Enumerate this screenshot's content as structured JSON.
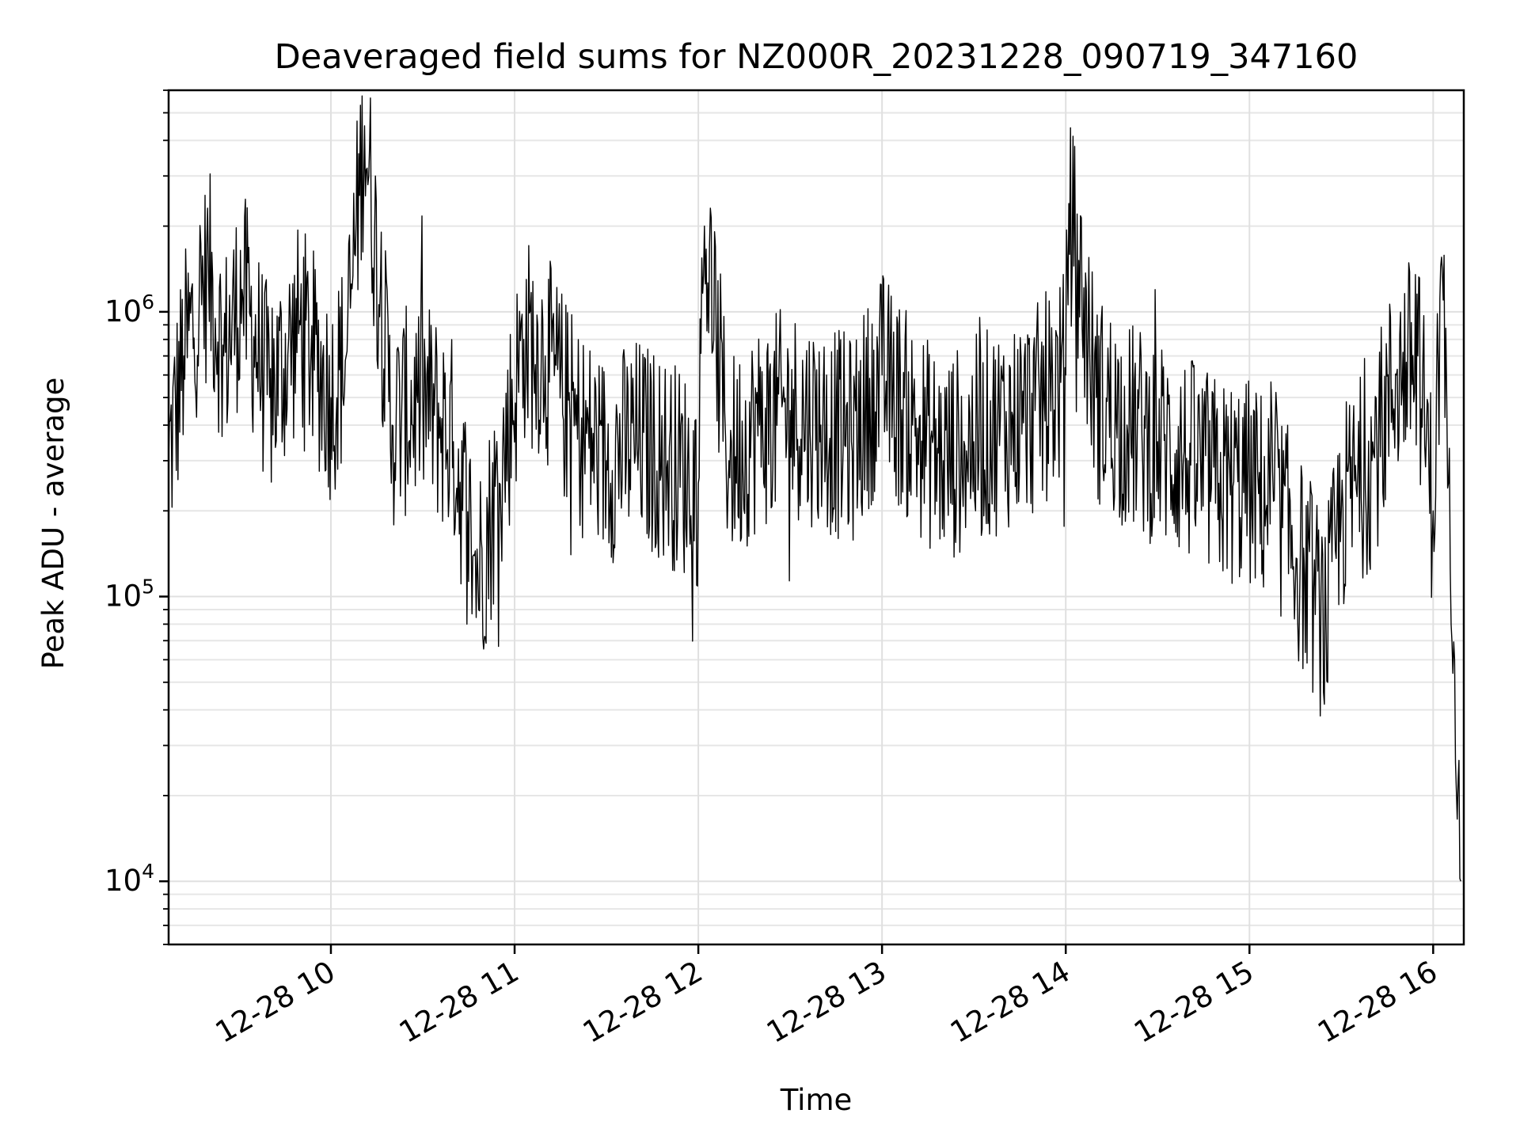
{
  "chart_data": {
    "type": "line",
    "title": "Deaveraged field sums for NZ000R_20231228_090719_347160",
    "xlabel": "Time",
    "ylabel": "Peak ADU - average",
    "y_scale": "log",
    "ylim": [
      6000,
      6000000
    ],
    "xlim": [
      "2023-12-28 09:07",
      "2023-12-28 16:10"
    ],
    "grid": true,
    "line_color": "#000000",
    "x_ticks": [
      {
        "value": "2023-12-28 10:00",
        "label": "12-28 10"
      },
      {
        "value": "2023-12-28 11:00",
        "label": "12-28 11"
      },
      {
        "value": "2023-12-28 12:00",
        "label": "12-28 12"
      },
      {
        "value": "2023-12-28 13:00",
        "label": "12-28 13"
      },
      {
        "value": "2023-12-28 14:00",
        "label": "12-28 14"
      },
      {
        "value": "2023-12-28 15:00",
        "label": "12-28 15"
      },
      {
        "value": "2023-12-28 16:00",
        "label": "12-28 16"
      }
    ],
    "y_ticks": [
      {
        "value": 10000,
        "base": "10",
        "exp": "4"
      },
      {
        "value": 100000,
        "base": "10",
        "exp": "5"
      },
      {
        "value": 1000000,
        "base": "10",
        "exp": "6"
      }
    ],
    "series": [
      {
        "x": [
          "2023-12-28 09:07",
          "2023-12-28 09:12",
          "2023-12-28 09:20",
          "2023-12-28 09:25",
          "2023-12-28 09:31",
          "2023-12-28 09:40",
          "2023-12-28 09:50",
          "2023-12-28 10:00",
          "2023-12-28 10:05",
          "2023-12-28 10:11",
          "2023-12-28 10:20",
          "2023-12-28 10:30",
          "2023-12-28 10:40",
          "2023-12-28 10:48",
          "2023-12-28 10:55",
          "2023-12-28 11:03",
          "2023-12-28 11:10",
          "2023-12-28 11:20",
          "2023-12-28 11:30",
          "2023-12-28 11:40",
          "2023-12-28 11:50",
          "2023-12-28 12:00",
          "2023-12-28 12:02",
          "2023-12-28 12:10",
          "2023-12-28 12:20",
          "2023-12-28 12:30",
          "2023-12-28 12:40",
          "2023-12-28 12:50",
          "2023-12-28 13:00",
          "2023-12-28 13:10",
          "2023-12-28 13:20",
          "2023-12-28 13:30",
          "2023-12-28 13:40",
          "2023-12-28 13:50",
          "2023-12-28 14:00",
          "2023-12-28 14:01",
          "2023-12-28 14:10",
          "2023-12-28 14:20",
          "2023-12-28 14:30",
          "2023-12-28 14:40",
          "2023-12-28 14:50",
          "2023-12-28 15:00",
          "2023-12-28 15:10",
          "2023-12-28 15:18",
          "2023-12-28 15:25",
          "2023-12-28 15:30",
          "2023-12-28 15:40",
          "2023-12-28 15:48",
          "2023-12-28 15:55",
          "2023-12-28 16:00",
          "2023-12-28 16:03",
          "2023-12-28 16:05",
          "2023-12-28 16:07",
          "2023-12-28 16:09"
        ],
        "y": [
          300000,
          700000,
          1400000,
          700000,
          1200000,
          500000,
          900000,
          500000,
          700000,
          4500000,
          400000,
          500000,
          350000,
          120000,
          250000,
          800000,
          700000,
          400000,
          300000,
          350000,
          300000,
          250000,
          2000000,
          300000,
          400000,
          450000,
          400000,
          350000,
          600000,
          400000,
          300000,
          350000,
          400000,
          450000,
          600000,
          2400000,
          500000,
          400000,
          350000,
          300000,
          250000,
          250000,
          200000,
          120000,
          80000,
          200000,
          300000,
          600000,
          700000,
          200000,
          1400000,
          250000,
          60000,
          10000
        ]
      }
    ]
  }
}
